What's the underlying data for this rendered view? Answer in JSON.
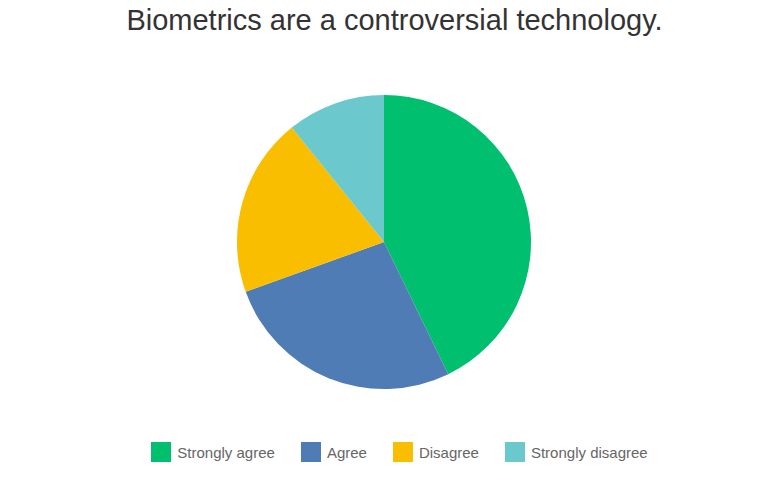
{
  "chart_data": {
    "type": "pie",
    "title": "Biometrics are a controversial technology.",
    "categories": [
      "Strongly agree",
      "Agree",
      "Disagree",
      "Strongly disagree"
    ],
    "values": [
      42.8,
      26.7,
      19.7,
      10.8
    ],
    "colors": [
      "#00bf6f",
      "#507cb6",
      "#f9be00",
      "#6bc8cd"
    ],
    "legend": "bottom"
  }
}
